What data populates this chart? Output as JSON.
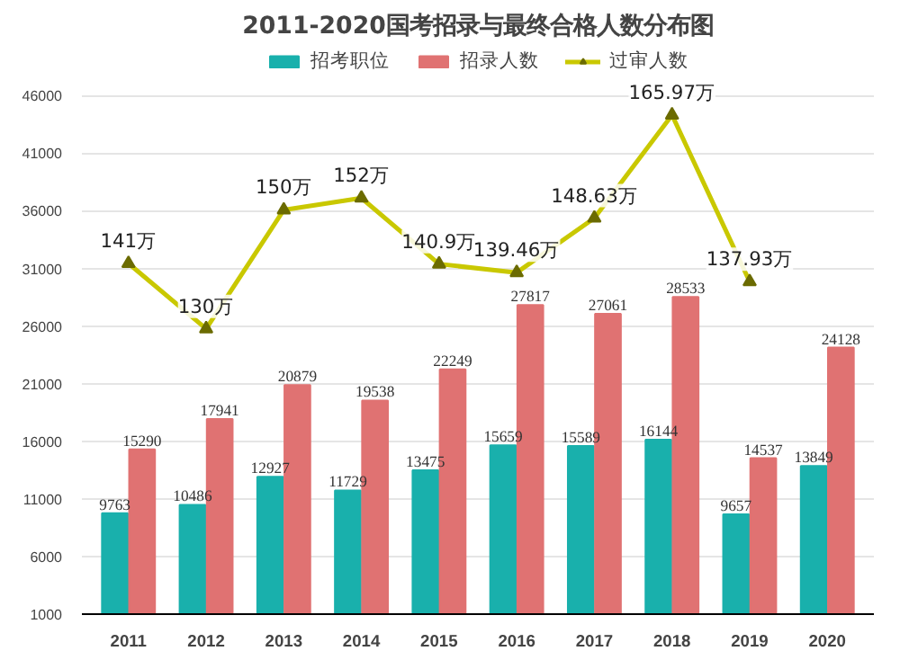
{
  "chart_data": {
    "type": "bar",
    "title": "2011-2020国考招录与最终合格人数分布图",
    "categories": [
      "2011",
      "2012",
      "2013",
      "2014",
      "2015",
      "2016",
      "2017",
      "2018",
      "2019",
      "2020"
    ],
    "series": [
      {
        "name": "招考职位",
        "color": "#19b0ac",
        "values": [
          9763,
          10486,
          12927,
          11729,
          13475,
          15659,
          15589,
          16144,
          9657,
          13849
        ],
        "value_labels": [
          "9763",
          "10486",
          "12927",
          "11729",
          "13475",
          "15659",
          "15589",
          "16144",
          "9657",
          "13849"
        ]
      },
      {
        "name": "招录人数",
        "color": "#e07272",
        "values": [
          15290,
          17941,
          20879,
          19538,
          22249,
          27817,
          27061,
          28533,
          14537,
          24128
        ],
        "value_labels": [
          "15290",
          "17941",
          "20879",
          "19538",
          "22249",
          "27817",
          "27061",
          "28533",
          "14537",
          "24128"
        ]
      },
      {
        "name": "过审人数",
        "type": "line",
        "axis": "y2",
        "color": "#c9c800",
        "marker": "triangle",
        "values": [
          141,
          130,
          150,
          152,
          140.9,
          139.46,
          148.63,
          165.97,
          137.93,
          null
        ],
        "value_labels": [
          "141万",
          "130万",
          "150万",
          "152万",
          "140.9万",
          "139.46万",
          "148.63万",
          "165.97万",
          "137.93万",
          null
        ]
      }
    ],
    "ylim": [
      1000,
      50000
    ],
    "yticks": [
      1000,
      6000,
      11000,
      16000,
      21000,
      26000,
      31000,
      36000,
      41000,
      46000
    ],
    "y2lim": [
      82,
      177
    ],
    "grid": "y",
    "legend": "top"
  }
}
